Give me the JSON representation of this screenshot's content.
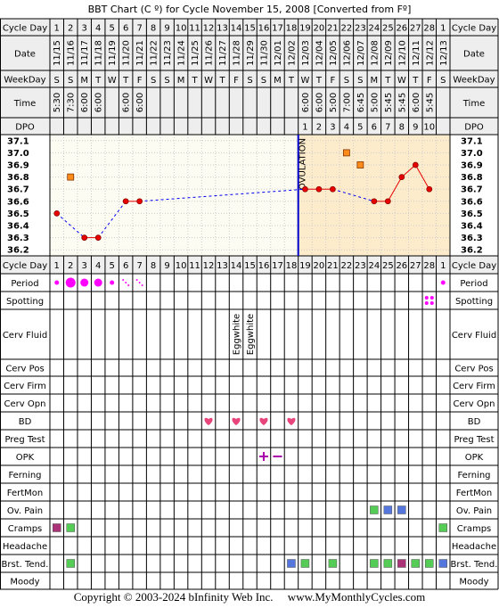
{
  "title": "BBT Chart (C º) for Cycle November 15, 2008  [Converted from Fº]",
  "footer": "Copyright © 2003-2024 bInfinity Web Inc.     www.MyMonthlyCycles.com",
  "colors": {
    "grid": "#000000",
    "row_bg": "#eeeeee",
    "plot_pre": "#fdfcf2",
    "plot_post": "#fdeccc",
    "plot_grid": "#cccccc",
    "temp_line": "#e60000",
    "temp_dot": "#e60000",
    "gap_line": "#0000ee",
    "coverline": "#0000cc",
    "extra_temp": "#ff8c1a",
    "period": "#ff00ff",
    "heart": "#e8457a",
    "opk": "#aa00aa",
    "green": "#55cc55",
    "blue": "#5577dd",
    "purple": "#aa3377"
  },
  "labels": {
    "cycle_day": "Cycle Day",
    "date": "Date",
    "weekday": "WeekDay",
    "time": "Time",
    "dpo": "DPO",
    "ovulation": "OVULATION"
  },
  "cycle_days": [
    "1",
    "2",
    "3",
    "4",
    "5",
    "6",
    "7",
    "8",
    "9",
    "10",
    "11",
    "12",
    "13",
    "14",
    "15",
    "16",
    "17",
    "18",
    "19",
    "20",
    "21",
    "22",
    "23",
    "24",
    "25",
    "26",
    "27",
    "28",
    "1"
  ],
  "dates": [
    "11/15",
    "11/16",
    "11/17",
    "11/18",
    "11/19",
    "11/20",
    "11/21",
    "11/22",
    "11/23",
    "11/24",
    "11/25",
    "11/26",
    "11/27",
    "11/28",
    "11/29",
    "11/30",
    "12/01",
    "12/02",
    "12/03",
    "12/04",
    "12/05",
    "12/06",
    "12/07",
    "12/08",
    "12/09",
    "12/10",
    "12/11",
    "12/12",
    "12/13"
  ],
  "weekdays": [
    "S",
    "S",
    "M",
    "T",
    "W",
    "T",
    "F",
    "S",
    "S",
    "M",
    "T",
    "W",
    "T",
    "F",
    "S",
    "S",
    "M",
    "T",
    "W",
    "T",
    "F",
    "S",
    "S",
    "M",
    "T",
    "W",
    "T",
    "F",
    "S"
  ],
  "times": [
    "5:30",
    "7:30",
    "6:00",
    "6:00",
    "",
    "6:00",
    "6:00",
    "",
    "",
    "",
    "",
    "",
    "",
    "",
    "",
    "",
    "",
    "",
    "6:00",
    "6:00",
    "5:00",
    "7:00",
    "6:45",
    "5:00",
    "5:45",
    "5:45",
    "6:00",
    "5:45",
    ""
  ],
  "dpo": [
    "",
    "",
    "",
    "",
    "",
    "",
    "",
    "",
    "",
    "",
    "",
    "",
    "",
    "",
    "",
    "",
    "",
    "",
    "1",
    "2",
    "3",
    "4",
    "5",
    "6",
    "7",
    "8",
    "9",
    "10",
    ""
  ],
  "temp_scale": [
    "37.1",
    "37.0",
    "36.9",
    "36.8",
    "36.7",
    "36.6",
    "36.5",
    "36.4",
    "36.3",
    "36.2"
  ],
  "chart_data": {
    "type": "line",
    "title": "BBT Chart (C º) for Cycle November 15, 2008  [Converted from Fº]",
    "xlabel": "Cycle Day",
    "ylabel": "",
    "ylim": [
      36.2,
      37.1
    ],
    "x": [
      1,
      2,
      3,
      4,
      5,
      6,
      7,
      8,
      9,
      10,
      11,
      12,
      13,
      14,
      15,
      16,
      17,
      18,
      19,
      20,
      21,
      22,
      23,
      24,
      25,
      26,
      27,
      28,
      29
    ],
    "series": [
      {
        "values": [
          36.5,
          null,
          36.3,
          36.3,
          null,
          36.6,
          36.6,
          null,
          null,
          null,
          null,
          null,
          null,
          null,
          null,
          null,
          null,
          null,
          36.7,
          36.7,
          36.7,
          null,
          null,
          36.6,
          36.6,
          36.8,
          36.9,
          36.7,
          null
        ]
      }
    ],
    "excluded_temps": [
      {
        "day": 2,
        "value": 36.8
      },
      {
        "day": 22,
        "value": 37.0
      },
      {
        "day": 23,
        "value": 36.9
      }
    ],
    "ovulation_after_day": 18,
    "grid": true
  },
  "rows": [
    {
      "label": "Cycle Day"
    },
    {
      "label": "Period",
      "marks": [
        {
          "day": 1,
          "kind": "dot",
          "size": "small",
          "color": "period"
        },
        {
          "day": 2,
          "kind": "dot",
          "size": "large",
          "color": "period"
        },
        {
          "day": 3,
          "kind": "dot",
          "size": "medium",
          "color": "period"
        },
        {
          "day": 4,
          "kind": "dot",
          "size": "medium",
          "color": "period"
        },
        {
          "day": 5,
          "kind": "dot",
          "size": "small",
          "color": "period"
        },
        {
          "day": 6,
          "kind": "spot",
          "color": "period"
        },
        {
          "day": 7,
          "kind": "spot",
          "color": "period"
        },
        {
          "day": 29,
          "kind": "dot",
          "size": "small",
          "color": "period"
        }
      ]
    },
    {
      "label": "Spotting",
      "marks": [
        {
          "day": 28,
          "kind": "fourdots",
          "color": "period"
        }
      ]
    },
    {
      "label": "Cerv Fluid",
      "tall": true,
      "marks": [
        {
          "day": 14,
          "kind": "text",
          "text": "Eggwhite"
        },
        {
          "day": 15,
          "kind": "text",
          "text": "Eggwhite"
        }
      ]
    },
    {
      "label": "Cerv Pos",
      "marks": []
    },
    {
      "label": "Cerv Firm",
      "marks": []
    },
    {
      "label": "Cerv Opn",
      "marks": []
    },
    {
      "label": "BD",
      "marks": [
        {
          "day": 12,
          "kind": "heart"
        },
        {
          "day": 14,
          "kind": "heart"
        },
        {
          "day": 16,
          "kind": "heart"
        },
        {
          "day": 18,
          "kind": "heart"
        }
      ]
    },
    {
      "label": "Preg Test",
      "marks": []
    },
    {
      "label": "OPK",
      "marks": [
        {
          "day": 16,
          "kind": "plus"
        },
        {
          "day": 17,
          "kind": "minus"
        }
      ]
    },
    {
      "label": "Ferning",
      "marks": []
    },
    {
      "label": "FertMon",
      "marks": []
    },
    {
      "label": "Ov. Pain",
      "marks": [
        {
          "day": 24,
          "kind": "square",
          "color": "green"
        },
        {
          "day": 25,
          "kind": "square",
          "color": "blue"
        },
        {
          "day": 26,
          "kind": "square",
          "color": "blue"
        }
      ]
    },
    {
      "label": "Cramps",
      "marks": [
        {
          "day": 1,
          "kind": "square",
          "color": "purple"
        },
        {
          "day": 2,
          "kind": "square",
          "color": "green"
        },
        {
          "day": 29,
          "kind": "square",
          "color": "green"
        }
      ]
    },
    {
      "label": "Headache",
      "marks": []
    },
    {
      "label": "Brst. Tend.",
      "marks": [
        {
          "day": 2,
          "kind": "square",
          "color": "green"
        },
        {
          "day": 18,
          "kind": "square",
          "color": "blue"
        },
        {
          "day": 19,
          "kind": "square",
          "color": "green"
        },
        {
          "day": 21,
          "kind": "square",
          "color": "green"
        },
        {
          "day": 24,
          "kind": "square",
          "color": "green"
        },
        {
          "day": 25,
          "kind": "square",
          "color": "green"
        },
        {
          "day": 26,
          "kind": "square",
          "color": "purple"
        },
        {
          "day": 27,
          "kind": "square",
          "color": "green"
        },
        {
          "day": 28,
          "kind": "square",
          "color": "green"
        },
        {
          "day": 29,
          "kind": "square",
          "color": "blue"
        }
      ]
    },
    {
      "label": "Moody",
      "marks": []
    }
  ]
}
